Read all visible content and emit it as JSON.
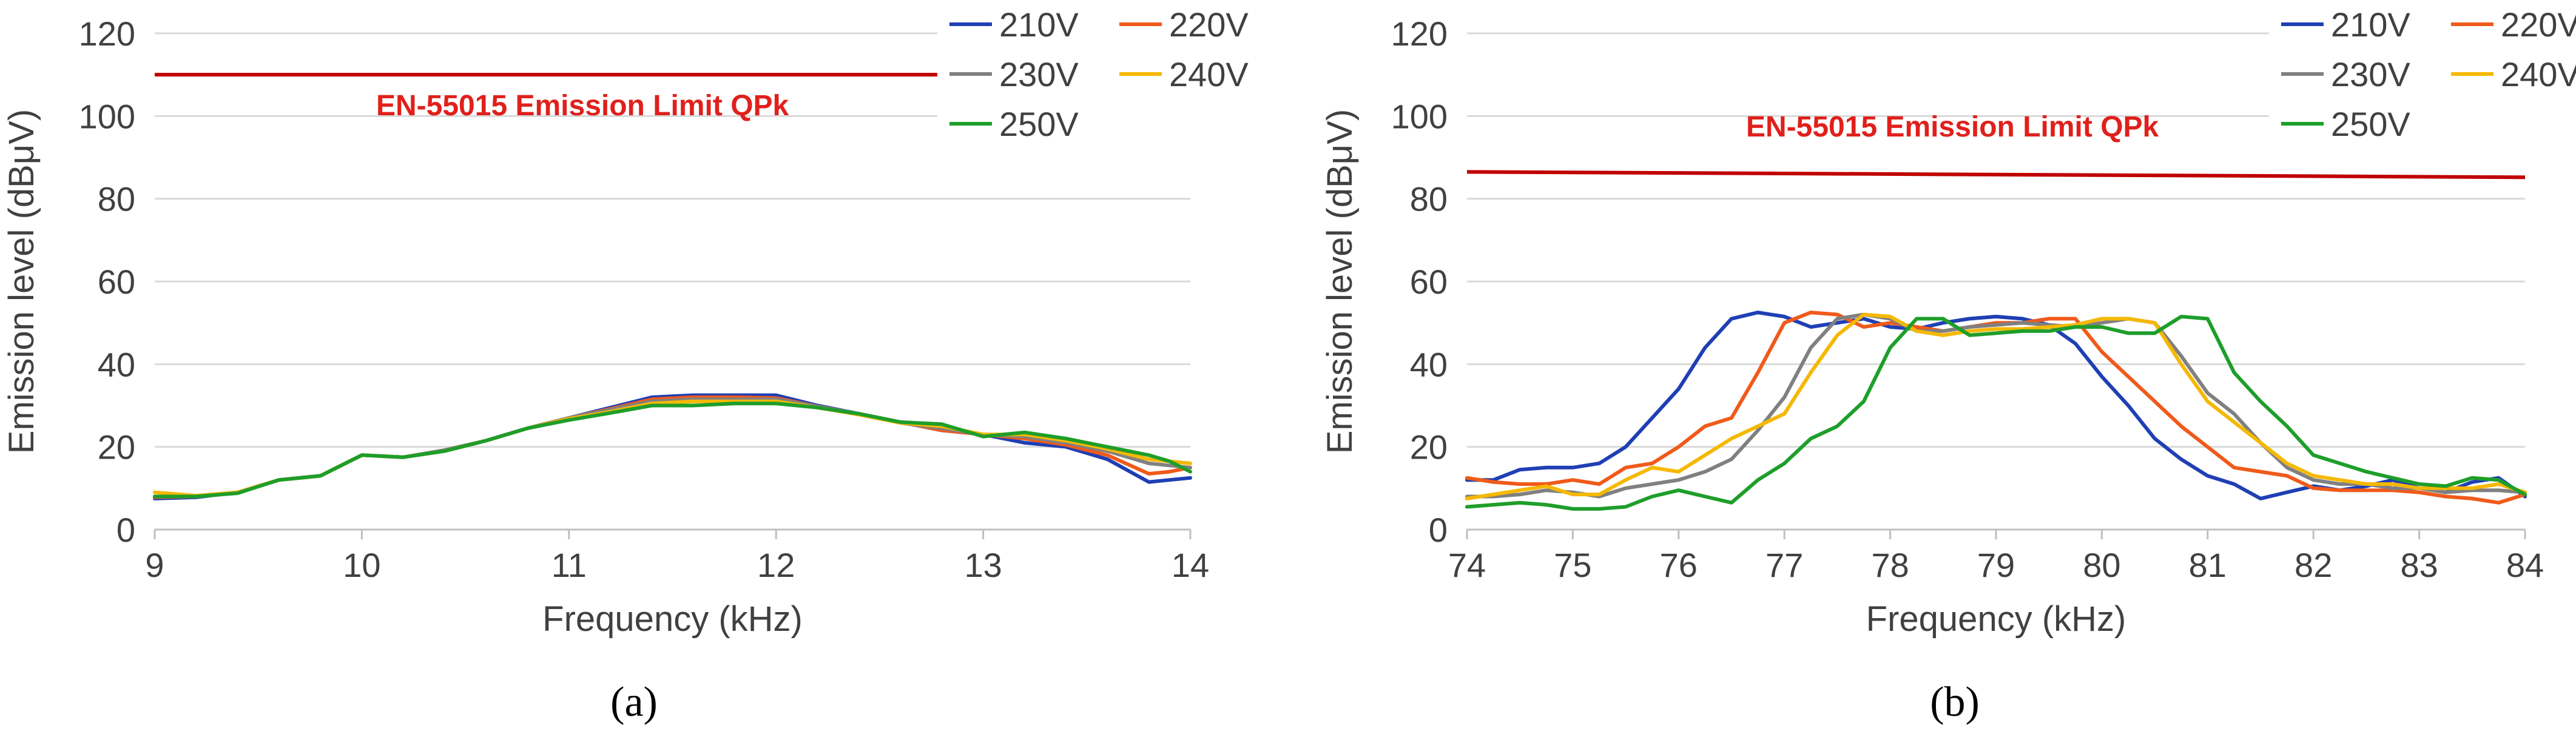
{
  "chart_data": [
    {
      "type": "line",
      "panel_label": "(a)",
      "xlabel": "Frequency (kHz)",
      "ylabel": "Emission level (dBμV)",
      "xlim": [
        9,
        14
      ],
      "ylim": [
        0,
        120
      ],
      "xticks": [
        9,
        10,
        11,
        12,
        13,
        14
      ],
      "yticks": [
        0,
        20,
        40,
        60,
        80,
        100,
        120
      ],
      "grid": true,
      "legend_position": "top-right",
      "limit": {
        "label": "EN-55015 Emission Limit QPk",
        "x": [
          9,
          14
        ],
        "y": [
          110,
          110
        ],
        "color": "#c00000"
      },
      "series": [
        {
          "name": "210V",
          "color": "#1f3fb4",
          "x": [
            9,
            9.2,
            9.4,
            9.6,
            9.8,
            10,
            10.2,
            10.4,
            10.6,
            10.8,
            11,
            11.2,
            11.4,
            11.6,
            11.8,
            12,
            12.2,
            12.4,
            12.6,
            12.8,
            13,
            13.2,
            13.4,
            13.6,
            13.8,
            13.9,
            14
          ],
          "y": [
            7.5,
            7.8,
            9,
            12,
            13,
            18,
            17.5,
            19,
            21.5,
            24.5,
            27,
            29.5,
            32,
            32.5,
            32.5,
            32.5,
            30,
            28,
            26,
            24,
            23,
            21,
            20,
            17,
            11.5,
            12,
            12.5
          ]
        },
        {
          "name": "220V",
          "color": "#f05a1a",
          "x": [
            9,
            9.2,
            9.4,
            9.6,
            9.8,
            10,
            10.2,
            10.4,
            10.6,
            10.8,
            11,
            11.2,
            11.4,
            11.6,
            11.8,
            12,
            12.2,
            12.4,
            12.6,
            12.8,
            13,
            13.2,
            13.4,
            13.6,
            13.8,
            13.9,
            14
          ],
          "y": [
            7.8,
            8,
            9,
            12,
            13,
            18,
            17.5,
            19.2,
            21.5,
            24.5,
            27,
            29.2,
            31.5,
            32,
            32,
            31.8,
            29.8,
            28,
            26,
            24,
            23,
            22,
            20.5,
            18,
            13.5,
            14,
            15
          ]
        },
        {
          "name": "230V",
          "color": "#808080",
          "x": [
            9,
            9.2,
            9.4,
            9.6,
            9.8,
            10,
            10.2,
            10.4,
            10.6,
            10.8,
            11,
            11.2,
            11.4,
            11.6,
            11.8,
            12,
            12.2,
            12.4,
            12.6,
            12.8,
            13,
            13.2,
            13.4,
            13.6,
            13.8,
            13.9,
            14
          ],
          "y": [
            8,
            8,
            9,
            12,
            13,
            18,
            17.5,
            19.2,
            21.5,
            24.5,
            27,
            29,
            31,
            31.5,
            31.5,
            31.5,
            29.8,
            28,
            25.8,
            24.5,
            23,
            22.5,
            21,
            19,
            16,
            15.5,
            15
          ]
        },
        {
          "name": "240V",
          "color": "#f5b800",
          "x": [
            9,
            9.2,
            9.4,
            9.6,
            9.8,
            10,
            10.2,
            10.4,
            10.6,
            10.8,
            11,
            11.2,
            11.4,
            11.6,
            11.8,
            12,
            12.2,
            12.4,
            12.6,
            12.8,
            13,
            13.2,
            13.4,
            13.6,
            13.8,
            13.9,
            14
          ],
          "y": [
            9,
            8.2,
            9,
            12,
            13,
            18,
            17.5,
            19,
            21.5,
            24.5,
            26.8,
            28.5,
            30.5,
            31,
            31,
            31,
            29.5,
            27.8,
            25.8,
            25,
            23,
            23,
            21.5,
            19.5,
            17,
            16.5,
            16
          ]
        },
        {
          "name": "250V",
          "color": "#1e9e2a",
          "x": [
            9,
            9.2,
            9.4,
            9.6,
            9.8,
            10,
            10.2,
            10.4,
            10.6,
            10.8,
            11,
            11.2,
            11.4,
            11.6,
            11.8,
            12,
            12.2,
            12.4,
            12.6,
            12.8,
            13,
            13.2,
            13.4,
            13.6,
            13.8,
            13.9,
            14
          ],
          "y": [
            8,
            8,
            8.8,
            12,
            13,
            18,
            17.5,
            19,
            21.5,
            24.5,
            26.5,
            28.2,
            30,
            30,
            30.5,
            30.5,
            29.5,
            28,
            26,
            25.5,
            22.5,
            23.5,
            22,
            20,
            18,
            16.5,
            14
          ]
        }
      ]
    },
    {
      "type": "line",
      "panel_label": "(b)",
      "xlabel": "Frequency (kHz)",
      "ylabel": "Emission level (dBμV)",
      "xlim": [
        74,
        84
      ],
      "ylim": [
        0,
        120
      ],
      "xticks": [
        74,
        75,
        76,
        77,
        78,
        79,
        80,
        81,
        82,
        83,
        84
      ],
      "yticks": [
        0,
        20,
        40,
        60,
        80,
        100,
        120
      ],
      "grid": true,
      "legend_position": "top-right",
      "limit": {
        "label": "EN-55015 Emission Limit QPk",
        "x": [
          74,
          84
        ],
        "y": [
          86.5,
          85.2
        ],
        "color": "#c00000"
      },
      "series": [
        {
          "name": "210V",
          "color": "#1f3fb4",
          "x": [
            74,
            74.25,
            74.5,
            74.75,
            75,
            75.25,
            75.5,
            75.75,
            76,
            76.25,
            76.5,
            76.75,
            77,
            77.25,
            77.5,
            77.75,
            78,
            78.25,
            78.5,
            78.75,
            79,
            79.25,
            79.5,
            79.75,
            80,
            80.25,
            80.5,
            80.75,
            81,
            81.25,
            81.5,
            81.75,
            82,
            82.25,
            82.5,
            82.75,
            83,
            83.25,
            83.5,
            83.75,
            84
          ],
          "y": [
            12,
            12,
            14.5,
            15,
            15,
            16,
            20,
            27,
            34,
            44,
            51,
            52.5,
            51.5,
            49,
            50,
            51,
            49,
            48.5,
            50,
            51,
            51.5,
            51,
            49.5,
            45,
            37,
            30,
            22,
            17,
            13,
            11,
            7.5,
            9,
            10.5,
            9.5,
            10.5,
            12,
            10,
            9,
            11.5,
            12.5,
            8
          ]
        },
        {
          "name": "220V",
          "color": "#f05a1a",
          "x": [
            74,
            74.25,
            74.5,
            74.75,
            75,
            75.25,
            75.5,
            75.75,
            76,
            76.25,
            76.5,
            76.75,
            77,
            77.25,
            77.5,
            77.75,
            78,
            78.25,
            78.5,
            78.75,
            79,
            79.25,
            79.5,
            79.75,
            80,
            80.25,
            80.5,
            80.75,
            81,
            81.25,
            81.5,
            81.75,
            82,
            82.25,
            82.5,
            82.75,
            83,
            83.25,
            83.5,
            83.75,
            84
          ],
          "y": [
            12.5,
            11.5,
            11,
            11,
            12,
            11,
            15,
            16,
            20,
            25,
            27,
            38,
            50,
            52.5,
            52,
            49,
            50,
            49,
            48,
            49,
            50,
            50,
            51,
            51,
            43,
            37,
            31,
            25,
            20,
            15,
            14,
            13,
            10,
            9.5,
            9.5,
            9.5,
            9,
            8,
            7.5,
            6.5,
            8.5
          ]
        },
        {
          "name": "230V",
          "color": "#808080",
          "x": [
            74,
            74.25,
            74.5,
            74.75,
            75,
            75.25,
            75.5,
            75.75,
            76,
            76.25,
            76.5,
            76.75,
            77,
            77.25,
            77.5,
            77.75,
            78,
            78.25,
            78.5,
            78.75,
            79,
            79.25,
            79.5,
            79.75,
            80,
            80.25,
            80.5,
            80.75,
            81,
            81.25,
            81.5,
            81.75,
            82,
            82.25,
            82.5,
            82.75,
            83,
            83.25,
            83.5,
            83.75,
            84
          ],
          "y": [
            8,
            8,
            8.5,
            9.5,
            9,
            8,
            10,
            11,
            12,
            14,
            17,
            24,
            32,
            44,
            51,
            52,
            51,
            48,
            48,
            49,
            49.5,
            50,
            49.5,
            49,
            50,
            51,
            50,
            42,
            33,
            28,
            21,
            15,
            12,
            11,
            11,
            10,
            10,
            9,
            9.5,
            9.5,
            9
          ]
        },
        {
          "name": "240V",
          "color": "#f5b800",
          "x": [
            74,
            74.25,
            74.5,
            74.75,
            75,
            75.25,
            75.5,
            75.75,
            76,
            76.25,
            76.5,
            76.75,
            77,
            77.25,
            77.5,
            77.75,
            78,
            78.25,
            78.5,
            78.75,
            79,
            79.25,
            79.5,
            79.75,
            80,
            80.25,
            80.5,
            80.75,
            81,
            81.25,
            81.5,
            81.75,
            82,
            82.25,
            82.5,
            82.75,
            83,
            83.25,
            83.5,
            83.75,
            84
          ],
          "y": [
            7.5,
            8.5,
            9.5,
            10.5,
            8.5,
            8.5,
            12,
            15,
            14,
            18,
            22,
            25,
            28,
            38,
            47,
            52,
            51.5,
            48,
            47,
            48,
            48.5,
            48.5,
            49,
            49.5,
            51,
            51,
            50,
            40,
            31,
            26,
            21,
            16,
            13,
            12,
            11,
            11,
            10,
            10,
            10,
            11,
            9
          ]
        },
        {
          "name": "250V",
          "color": "#1e9e2a",
          "x": [
            74,
            74.25,
            74.5,
            74.75,
            75,
            75.25,
            75.5,
            75.75,
            76,
            76.25,
            76.5,
            76.75,
            77,
            77.25,
            77.5,
            77.75,
            78,
            78.25,
            78.5,
            78.75,
            79,
            79.25,
            79.5,
            79.75,
            80,
            80.25,
            80.5,
            80.75,
            81,
            81.25,
            81.5,
            81.75,
            82,
            82.25,
            82.5,
            82.75,
            83,
            83.25,
            83.5,
            83.75,
            84
          ],
          "y": [
            5.5,
            6,
            6.5,
            6,
            5,
            5,
            5.5,
            8,
            9.5,
            8,
            6.5,
            12,
            16,
            22,
            25,
            31,
            44,
            51,
            51,
            47,
            47.5,
            48,
            48,
            49,
            49,
            47.5,
            47.5,
            51.5,
            51,
            38,
            31,
            25,
            18,
            16,
            14,
            12.5,
            11,
            10.5,
            12.5,
            12,
            8.5
          ]
        }
      ]
    }
  ]
}
